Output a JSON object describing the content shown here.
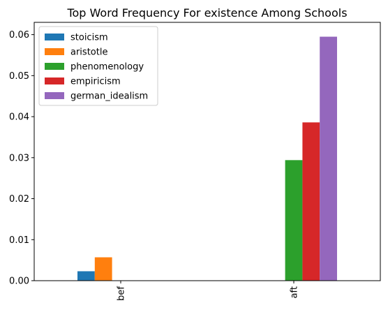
{
  "chart_data": {
    "type": "bar",
    "title": "Top Word Frequency For existence Among Schools",
    "xlabel": "",
    "ylabel": "",
    "categories": [
      "bef",
      "aft"
    ],
    "ylim": [
      0,
      0.063
    ],
    "yticks": [
      "0.00",
      "0.01",
      "0.02",
      "0.03",
      "0.04",
      "0.05",
      "0.06"
    ],
    "grid": false,
    "legend_position": "top-left",
    "series": [
      {
        "name": "stoicism",
        "color": "#1f77b4",
        "values": [
          0.0023,
          0
        ]
      },
      {
        "name": "aristotle",
        "color": "#ff7f0e",
        "values": [
          0.0057,
          0
        ]
      },
      {
        "name": "phenomenology",
        "color": "#2ca02c",
        "values": [
          0,
          0.0294
        ]
      },
      {
        "name": "empiricism",
        "color": "#d62728",
        "values": [
          0,
          0.0386
        ]
      },
      {
        "name": "german_idealism",
        "color": "#9467bd",
        "values": [
          0,
          0.0595
        ]
      }
    ]
  }
}
